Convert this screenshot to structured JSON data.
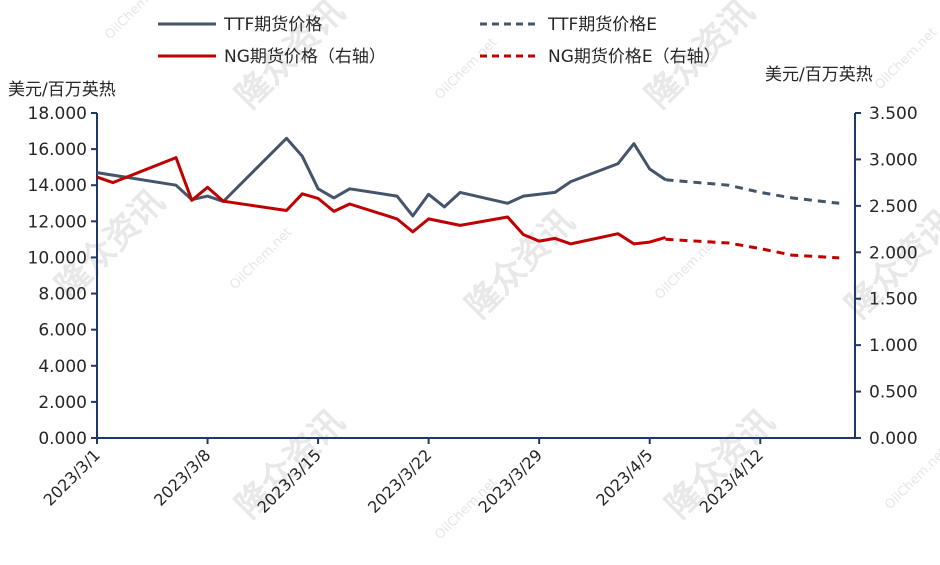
{
  "chart_data": {
    "type": "line",
    "y_left_unit": "美元/百万英热",
    "y_right_unit": "美元/百万英热",
    "y_left_lim": [
      0,
      18
    ],
    "y_right_lim": [
      0,
      3.5
    ],
    "y_left_ticks": [
      "0.000",
      "2.000",
      "4.000",
      "6.000",
      "8.000",
      "10.000",
      "12.000",
      "14.000",
      "16.000",
      "18.000"
    ],
    "y_right_ticks": [
      "0.000",
      "0.500",
      "1.000",
      "1.500",
      "2.000",
      "2.500",
      "3.000",
      "3.500"
    ],
    "x_lim": [
      "2023/3/1",
      "2023/4/18"
    ],
    "x_ticks": [
      "2023/3/1",
      "2023/3/8",
      "2023/3/15",
      "2023/3/22",
      "2023/3/29",
      "2023/4/5",
      "2023/4/12"
    ],
    "legend": [
      {
        "label": "TTF期货价格",
        "color": "#44546a",
        "style": "solid"
      },
      {
        "label": "TTF期货价格E",
        "color": "#44546a",
        "style": "dashed"
      },
      {
        "label": "NG期货价格（右轴）",
        "color": "#c00000",
        "style": "solid"
      },
      {
        "label": "NG期货价格E（右轴）",
        "color": "#c00000",
        "style": "dashed"
      }
    ],
    "series": [
      {
        "name": "TTF期货价格",
        "axis": "left",
        "color": "#44546a",
        "style": "solid",
        "x": [
          "2023/3/1",
          "2023/3/6",
          "2023/3/7",
          "2023/3/8",
          "2023/3/9",
          "2023/3/13",
          "2023/3/14",
          "2023/3/15",
          "2023/3/16",
          "2023/3/17",
          "2023/3/20",
          "2023/3/21",
          "2023/3/22",
          "2023/3/23",
          "2023/3/24",
          "2023/3/27",
          "2023/3/28",
          "2023/3/29",
          "2023/3/30",
          "2023/3/31",
          "2023/4/3",
          "2023/4/4",
          "2023/4/5",
          "2023/4/6"
        ],
        "y": [
          14.7,
          14.0,
          13.2,
          13.4,
          13.1,
          16.6,
          15.6,
          13.8,
          13.3,
          13.8,
          13.4,
          12.3,
          13.5,
          12.8,
          13.6,
          13.0,
          13.4,
          13.5,
          13.6,
          14.2,
          15.2,
          16.3,
          14.9,
          14.3
        ]
      },
      {
        "name": "TTF期货价格E",
        "axis": "left",
        "color": "#44546a",
        "style": "dashed",
        "x": [
          "2023/4/6",
          "2023/4/10",
          "2023/4/12",
          "2023/4/14",
          "2023/4/17"
        ],
        "y": [
          14.3,
          14.0,
          13.6,
          13.3,
          13.0
        ]
      },
      {
        "name": "NG期货价格（右轴）",
        "axis": "right",
        "color": "#c00000",
        "style": "solid",
        "x": [
          "2023/3/1",
          "2023/3/2",
          "2023/3/6",
          "2023/3/7",
          "2023/3/8",
          "2023/3/9",
          "2023/3/13",
          "2023/3/14",
          "2023/3/15",
          "2023/3/16",
          "2023/3/17",
          "2023/3/20",
          "2023/3/21",
          "2023/3/22",
          "2023/3/24",
          "2023/3/27",
          "2023/3/28",
          "2023/3/29",
          "2023/3/30",
          "2023/3/31",
          "2023/4/3",
          "2023/4/4",
          "2023/4/5",
          "2023/4/6"
        ],
        "y": [
          2.81,
          2.75,
          3.02,
          2.56,
          2.7,
          2.55,
          2.45,
          2.63,
          2.58,
          2.44,
          2.52,
          2.36,
          2.22,
          2.36,
          2.29,
          2.38,
          2.19,
          2.12,
          2.15,
          2.09,
          2.2,
          2.09,
          2.11,
          2.16
        ]
      },
      {
        "name": "NG期货价格E（右轴）",
        "axis": "right",
        "color": "#c00000",
        "style": "dashed",
        "x": [
          "2023/4/6",
          "2023/4/10",
          "2023/4/12",
          "2023/4/14",
          "2023/4/17"
        ],
        "y": [
          2.14,
          2.1,
          2.04,
          1.97,
          1.94
        ]
      }
    ]
  },
  "watermark": {
    "brand": "隆众资讯",
    "site": "OilChem.net"
  }
}
